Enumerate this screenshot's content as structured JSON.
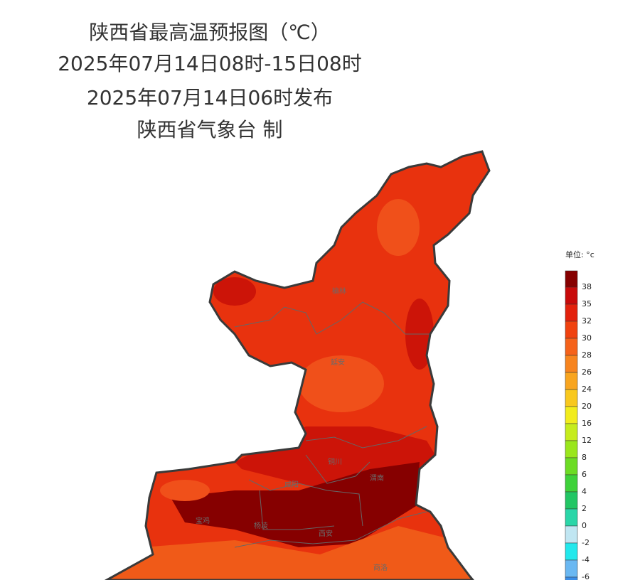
{
  "header": {
    "lines": [
      "陕西省最高温预报图（℃）",
      "2025年07月14日08时-15日08时",
      "2025年07月14日06时发布",
      "陕西省气象台 制"
    ]
  },
  "map": {
    "cities": [
      "榆林",
      "延安",
      "铜川",
      "渭南",
      "咸阳",
      "宝鸡",
      "杨凌",
      "西安",
      "商洛"
    ]
  },
  "legend": {
    "unit": "单位: °c",
    "ticks": [
      38,
      35,
      32,
      30,
      28,
      26,
      24,
      20,
      16,
      12,
      8,
      6,
      4,
      2,
      0,
      -2,
      -4,
      -6
    ],
    "colors": [
      "#860000",
      "#c80a0a",
      "#e3210c",
      "#f0420f",
      "#f5621a",
      "#f7841e",
      "#f8a51f",
      "#f8c81e",
      "#f2ec1c",
      "#c6ec1c",
      "#9ae61c",
      "#6cdc24",
      "#3ed23a",
      "#22c664",
      "#2ad6a8",
      "#c0e6f2",
      "#22e8ec",
      "#6ab8f2",
      "#3a8ee8"
    ]
  }
}
